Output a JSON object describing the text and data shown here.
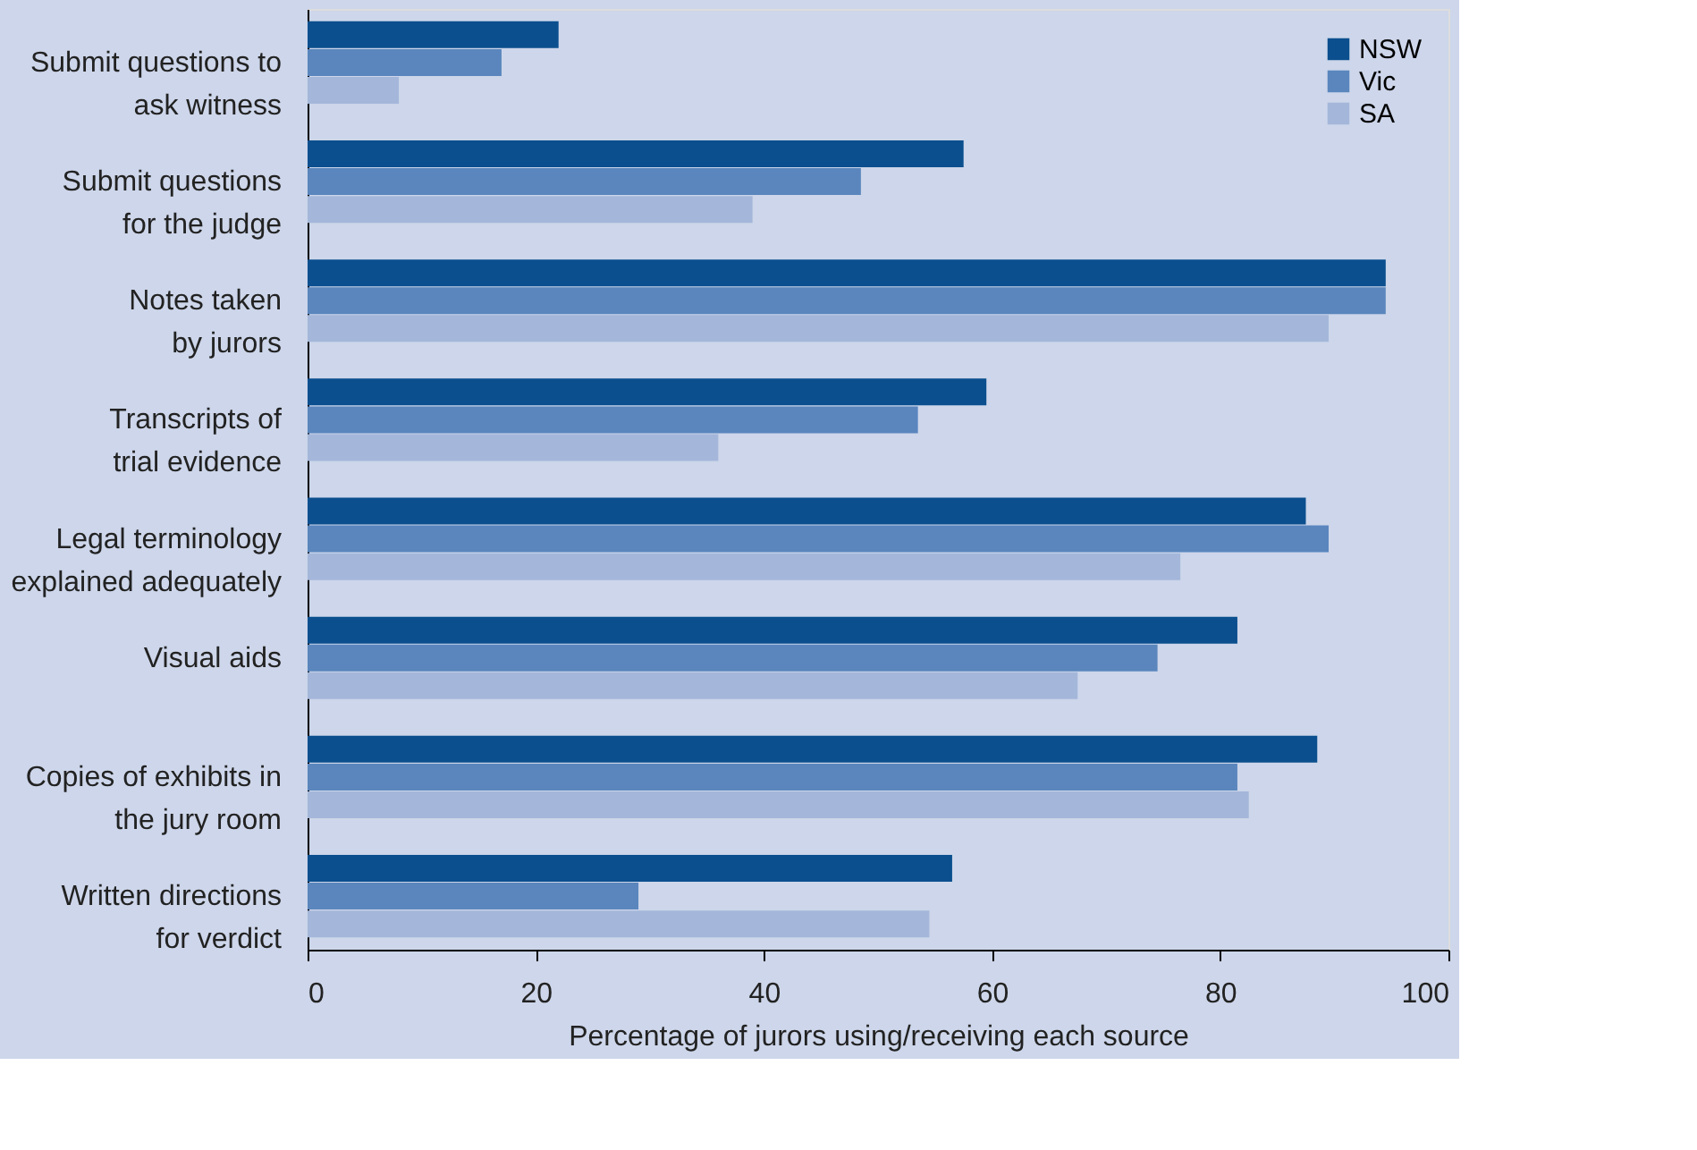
{
  "chart_data": {
    "type": "bar",
    "orientation": "horizontal",
    "xlabel": "Percentage of jurors using/receiving each source",
    "categories": [
      "Submit questions to\nask witness",
      "Submit questions\nfor the judge",
      "Notes taken\nby jurors",
      "Transcripts of\ntrial evidence",
      "Legal terminology\nexplained adequately",
      "Visual aids",
      "Copies of exhibits in\nthe jury room",
      "Written directions\nfor verdict"
    ],
    "series": [
      {
        "name": "NSW",
        "color": "#0b4f8e",
        "values": [
          22,
          57.5,
          94.5,
          59.5,
          87.5,
          81.5,
          88.5,
          56.5
        ]
      },
      {
        "name": "Vic",
        "color": "#5a86bd",
        "values": [
          17,
          48.5,
          94.5,
          53.5,
          89.5,
          74.5,
          81.5,
          29
        ]
      },
      {
        "name": "SA",
        "color": "#a4b7da",
        "values": [
          8,
          39,
          89.5,
          36,
          76.5,
          67.5,
          82.5,
          54.5
        ]
      }
    ],
    "xlim": [
      0,
      100
    ],
    "xticks": [
      0,
      20,
      40,
      60,
      80,
      100
    ],
    "legend": "top right",
    "grid": false
  }
}
